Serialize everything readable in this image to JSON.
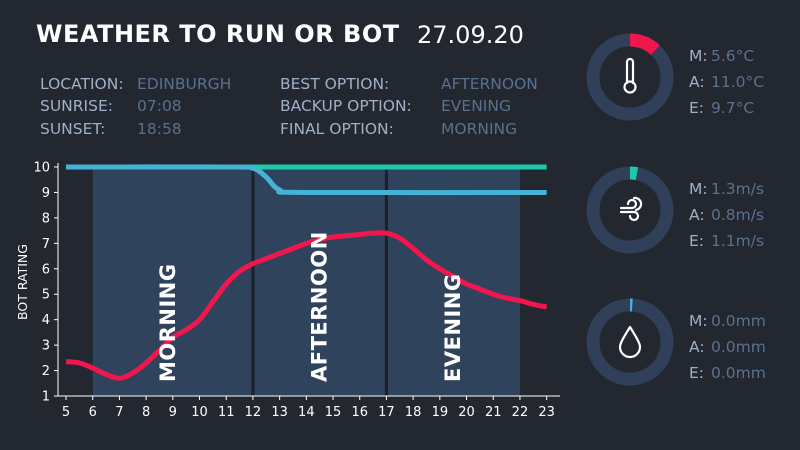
{
  "header": {
    "title": "WEATHER TO RUN OR BOT",
    "date": "27.09.20"
  },
  "info_left": [
    {
      "label": "LOCATION:",
      "value": "EDINBURGH"
    },
    {
      "label": "SUNRISE:",
      "value": "07:08"
    },
    {
      "label": "SUNSET:",
      "value": "18:58"
    }
  ],
  "info_right": [
    {
      "label": "BEST OPTION:",
      "value": "AFTERNOON"
    },
    {
      "label": "BACKUP OPTION:",
      "value": "EVENING"
    },
    {
      "label": "FINAL OPTION:",
      "value": "MORNING"
    }
  ],
  "chart_data": {
    "type": "line",
    "ylabel": "BOT RATING",
    "xlabel": "",
    "xlim": [
      4.7,
      23.5
    ],
    "ylim": [
      1,
      10
    ],
    "x_ticks": [
      5,
      6,
      7,
      8,
      9,
      10,
      11,
      12,
      13,
      14,
      15,
      16,
      17,
      18,
      19,
      20,
      21,
      22,
      23
    ],
    "y_ticks": [
      1,
      2,
      3,
      4,
      5,
      6,
      7,
      8,
      9,
      10
    ],
    "periods": [
      {
        "name": "MORNING",
        "start": 6,
        "end": 12
      },
      {
        "name": "AFTERNOON",
        "start": 12,
        "end": 17
      },
      {
        "name": "EVENING",
        "start": 17,
        "end": 22
      }
    ],
    "series": [
      {
        "color": "#1ec8a8",
        "x": [
          5,
          23
        ],
        "y": [
          10,
          10
        ]
      },
      {
        "color": "#44b3d6",
        "x": [
          5,
          11,
          12,
          12.5,
          13,
          14,
          23
        ],
        "y": [
          10,
          10,
          9.95,
          9.6,
          9.1,
          9.0,
          9.0
        ]
      },
      {
        "color": "#f2164e",
        "x": [
          5,
          5.5,
          6,
          6.5,
          7,
          7.5,
          8,
          8.5,
          9,
          9.5,
          10,
          10.5,
          11,
          11.5,
          12,
          12.5,
          13,
          13.5,
          14,
          14.5,
          15,
          15.5,
          16,
          16.5,
          17,
          17.5,
          18,
          18.5,
          19,
          19.5,
          20,
          20.5,
          21,
          21.5,
          22,
          22.5,
          23
        ],
        "y": [
          2.35,
          2.3,
          2.1,
          1.85,
          1.7,
          1.9,
          2.3,
          2.8,
          3.3,
          3.6,
          4.0,
          4.7,
          5.4,
          5.9,
          6.2,
          6.4,
          6.6,
          6.8,
          7.0,
          7.15,
          7.25,
          7.3,
          7.35,
          7.4,
          7.4,
          7.2,
          6.8,
          6.35,
          6.0,
          5.7,
          5.4,
          5.2,
          5.0,
          4.85,
          4.75,
          4.6,
          4.5
        ]
      }
    ]
  },
  "gauges": [
    {
      "icon": "thermometer-icon",
      "fraction": 0.12,
      "color": "#f2164e",
      "track": "#2f4058",
      "rows": [
        {
          "label": "M:",
          "value": "5.6°C"
        },
        {
          "label": "A:",
          "value": "11.0°C"
        },
        {
          "label": "E:",
          "value": "9.7°C"
        }
      ]
    },
    {
      "icon": "wind-icon",
      "fraction": 0.03,
      "color": "#1ec8a8",
      "track": "#2f4058",
      "rows": [
        {
          "label": "M:",
          "value": "1.3m/s"
        },
        {
          "label": "A:",
          "value": "0.8m/s"
        },
        {
          "label": "E:",
          "value": "1.1m/s"
        }
      ]
    },
    {
      "icon": "raindrop-icon",
      "fraction": 0.01,
      "color": "#44b3d6",
      "track": "#2f4058",
      "rows": [
        {
          "label": "M:",
          "value": "0.0mm"
        },
        {
          "label": "A:",
          "value": "0.0mm"
        },
        {
          "label": "E:",
          "value": "0.0mm"
        }
      ]
    }
  ]
}
